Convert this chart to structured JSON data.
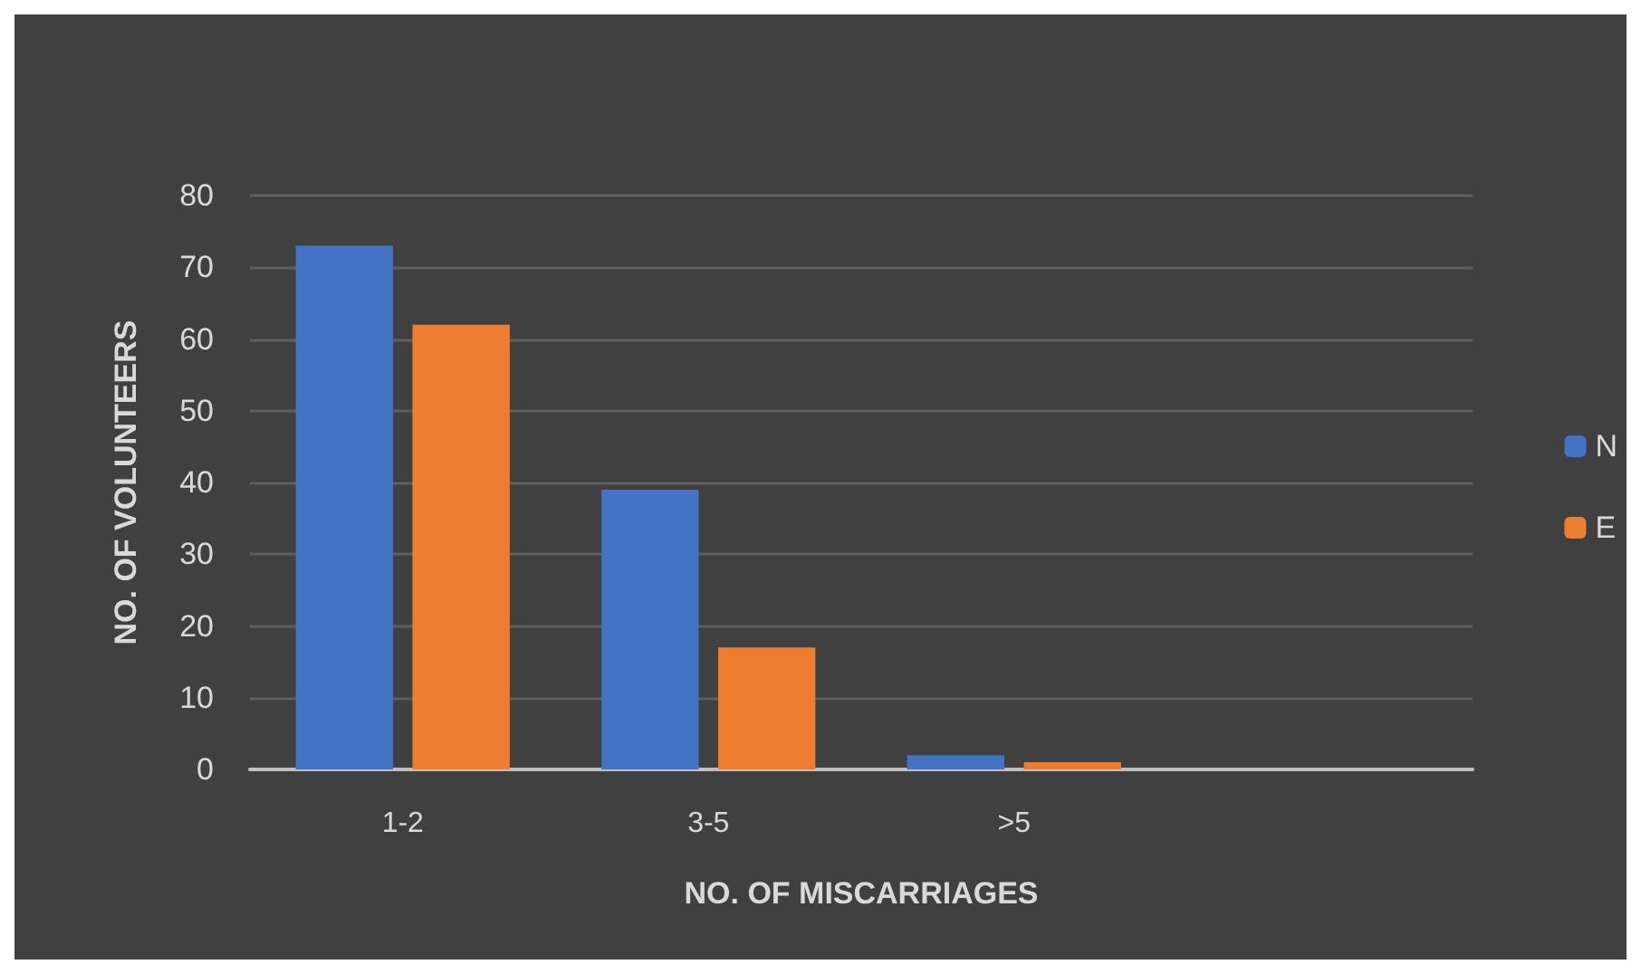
{
  "chart_data": {
    "type": "bar",
    "xlabel": "NO. OF MISCARRIAGES",
    "ylabel": "NO. OF VOLUNTEERS",
    "categories": [
      "1-2",
      "3-5",
      ">5",
      null
    ],
    "series": [
      {
        "name": "N",
        "color": "#4472c4",
        "values": [
          73,
          39,
          2,
          null
        ]
      },
      {
        "name": "E",
        "color": "#ed7d31",
        "values": [
          62,
          17,
          1,
          null
        ]
      }
    ],
    "ylim": [
      0,
      80
    ],
    "yticks": [
      0,
      10,
      20,
      30,
      40,
      50,
      60,
      70,
      80
    ],
    "grid": "y",
    "legend": "right"
  }
}
